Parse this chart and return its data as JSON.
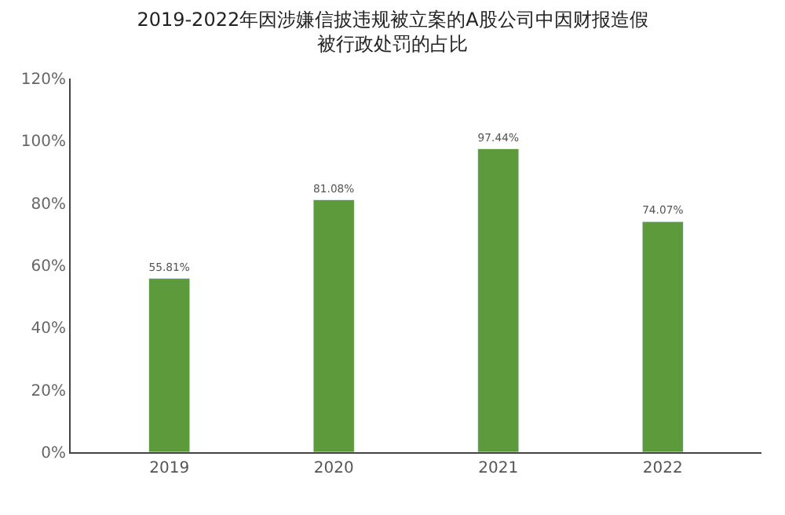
{
  "chart_data": {
    "type": "bar",
    "title": "2019-2022年因涉嫌信披违规被立案的A股公司中因财报造假被行政处罚的占比",
    "categories": [
      "2019",
      "2020",
      "2021",
      "2022"
    ],
    "values": [
      55.81,
      81.08,
      97.44,
      74.07
    ],
    "value_labels": [
      "55.81%",
      "81.08%",
      "97.44%",
      "74.07%"
    ],
    "color": "#5c9a3c",
    "ylim": [
      0,
      120
    ],
    "yticks": [
      {
        "value": 0,
        "label": "0%"
      },
      {
        "value": 20,
        "label": "20%"
      },
      {
        "value": 40,
        "label": "40%"
      },
      {
        "value": 60,
        "label": "60%"
      },
      {
        "value": 80,
        "label": "80%"
      },
      {
        "value": 100,
        "label": "100%"
      },
      {
        "value": 120,
        "label": "120%"
      }
    ],
    "legend": false
  }
}
